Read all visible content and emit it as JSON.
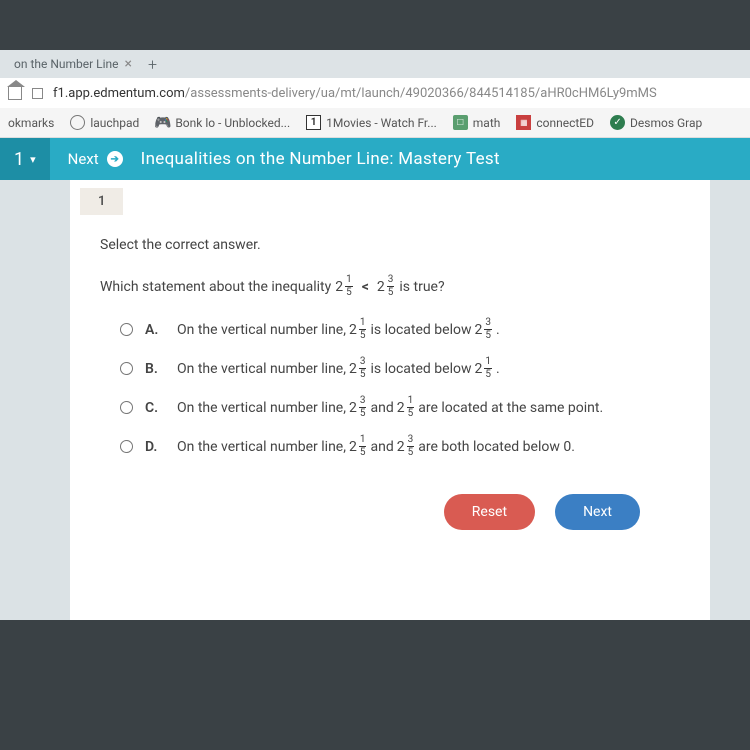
{
  "browser": {
    "tab_title": "on the Number Line",
    "url_domain": "f1.app.edmentum.com",
    "url_path": "/assessments-delivery/ua/mt/launch/49020366/844514185/aHR0cHM6Ly9mMS",
    "bookmarks": [
      {
        "label": "okmarks",
        "icon": ""
      },
      {
        "label": "lauchpad",
        "icon": "globe"
      },
      {
        "label": "Bonk lo - Unblocked...",
        "icon": "ctrl"
      },
      {
        "label": "1Movies - Watch Fr...",
        "icon": "one"
      },
      {
        "label": "math",
        "icon": "green"
      },
      {
        "label": "connectED",
        "icon": "red"
      },
      {
        "label": "Desmos Grap",
        "icon": "desmos"
      }
    ]
  },
  "header": {
    "dropdown": "1",
    "next": "Next",
    "title": "Inequalities on the Number Line: Mastery Test"
  },
  "question": {
    "number": "1",
    "instruction": "Select the correct answer.",
    "stem_before": "Which statement about the inequality",
    "stem_after": "is true?",
    "ineq": {
      "a_whole": "2",
      "a_num": "1",
      "a_den": "5",
      "op": "<",
      "b_whole": "2",
      "b_num": "3",
      "b_den": "5"
    },
    "options": [
      {
        "label": "A.",
        "pre": "On the vertical number line,",
        "m1": {
          "w": "2",
          "n": "1",
          "d": "5"
        },
        "mid": "is located below",
        "m2": {
          "w": "2",
          "n": "3",
          "d": "5"
        },
        "post": "."
      },
      {
        "label": "B.",
        "pre": "On the vertical number line,",
        "m1": {
          "w": "2",
          "n": "3",
          "d": "5"
        },
        "mid": "is located below",
        "m2": {
          "w": "2",
          "n": "1",
          "d": "5"
        },
        "post": "."
      },
      {
        "label": "C.",
        "pre": "On the vertical number line,",
        "m1": {
          "w": "2",
          "n": "3",
          "d": "5"
        },
        "mid": "and",
        "m2": {
          "w": "2",
          "n": "1",
          "d": "5"
        },
        "post": "are located at the same point."
      },
      {
        "label": "D.",
        "pre": "On the vertical number line,",
        "m1": {
          "w": "2",
          "n": "1",
          "d": "5"
        },
        "mid": "and",
        "m2": {
          "w": "2",
          "n": "3",
          "d": "5"
        },
        "post": "are both located below 0."
      }
    ]
  },
  "buttons": {
    "reset": "Reset",
    "next": "Next"
  },
  "colors": {
    "header_bg": "#29abc5",
    "header_dark": "#1d8ea5",
    "reset": "#d95b52",
    "next": "#3b7fc4",
    "page_bg": "#dbe2e5"
  }
}
